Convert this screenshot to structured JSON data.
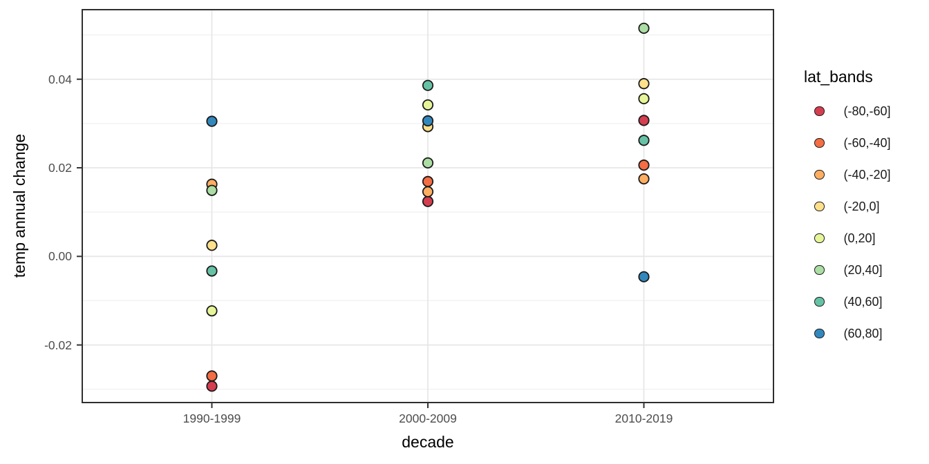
{
  "chart_data": {
    "type": "scatter",
    "title": "",
    "xlabel": "decade",
    "ylabel": "temp annual change",
    "grid": true,
    "legend": {
      "title": "lat_bands",
      "position": "right"
    },
    "categories": [
      "1990-1999",
      "2000-2009",
      "2010-2019"
    ],
    "y_axis": {
      "ticks": [
        {
          "label": "0.04",
          "value": 0.04
        },
        {
          "label": "0.02",
          "value": 0.02
        },
        {
          "label": "0.00",
          "value": 0.0
        },
        {
          "label": "-0.02",
          "value": -0.02
        }
      ],
      "minor_ticks": [
        0.05,
        0.03,
        0.01,
        -0.01,
        -0.03
      ],
      "ylim": [
        -0.033,
        0.0557
      ]
    },
    "series": [
      {
        "name": "(-80,-60]",
        "color": "#D53E4F",
        "values": [
          -0.0293,
          0.0124,
          0.0307
        ]
      },
      {
        "name": "(-60,-40]",
        "color": "#F46D43",
        "values": [
          -0.027,
          0.0169,
          0.0206
        ]
      },
      {
        "name": "(-40,-20]",
        "color": "#FDAE61",
        "values": [
          0.0163,
          0.0146,
          0.0175
        ]
      },
      {
        "name": "(-20,0]",
        "color": "#FEE08B",
        "values": [
          0.0025,
          0.0293,
          0.039
        ]
      },
      {
        "name": "(0,20]",
        "color": "#E6F598",
        "values": [
          -0.0123,
          0.0342,
          0.0356
        ]
      },
      {
        "name": "(20,40]",
        "color": "#ABDDA4",
        "values": [
          0.0149,
          0.0211,
          0.0515
        ]
      },
      {
        "name": "(40,60]",
        "color": "#66C2A5",
        "values": [
          -0.0033,
          0.0386,
          0.0262
        ]
      },
      {
        "name": "(60,80]",
        "color": "#3288BD",
        "values": [
          0.0305,
          0.0306,
          -0.0046
        ]
      }
    ],
    "style_colors": {
      "panel_border": "#2e2e2e",
      "grid_major": "#e7e7e7",
      "grid_minor": "#f1f1f1",
      "tick_mark": "#333333",
      "point_outline": "#1a1a1a"
    }
  }
}
